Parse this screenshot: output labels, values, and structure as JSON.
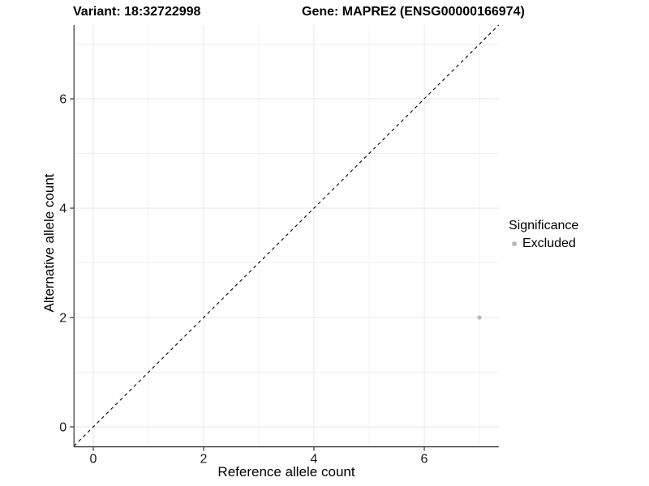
{
  "chart_data": {
    "type": "scatter",
    "title_left": "Variant: 18:32722998",
    "title_right": "Gene: MAPRE2 (ENSG00000166974)",
    "xlabel": "Reference allele count",
    "ylabel": "Alternative allele count",
    "xlim": [
      -0.35,
      7.35
    ],
    "ylim": [
      -0.35,
      7.35
    ],
    "x_major_ticks": [
      0,
      2,
      4,
      6
    ],
    "y_major_ticks": [
      0,
      2,
      4,
      6
    ],
    "x_tick_labels": [
      "0",
      "2",
      "4",
      "6"
    ],
    "y_tick_labels": [
      "0",
      "2",
      "4",
      "6"
    ],
    "x_minor_gridlines": [
      1,
      3,
      5,
      7
    ],
    "y_minor_gridlines": [
      1,
      3,
      5,
      7
    ],
    "grid": "major-and-minor",
    "identity_line": {
      "slope": 1,
      "intercept": 0,
      "style": "dashed",
      "color": "#000000",
      "from": -0.35,
      "to": 7.35
    },
    "series": [
      {
        "name": "Excluded",
        "color": "#b9b9b9",
        "points": [
          [
            7,
            2
          ]
        ]
      }
    ],
    "legend": {
      "position": "right",
      "title": "Significance",
      "entries": [
        {
          "label": "Excluded",
          "color": "#b9b9b9"
        }
      ]
    },
    "colors": {
      "axis_line": "#333333",
      "major_grid": "#e4e4e4",
      "minor_grid": "#f0f0f0",
      "tick_text": "#1a1a1a"
    }
  }
}
